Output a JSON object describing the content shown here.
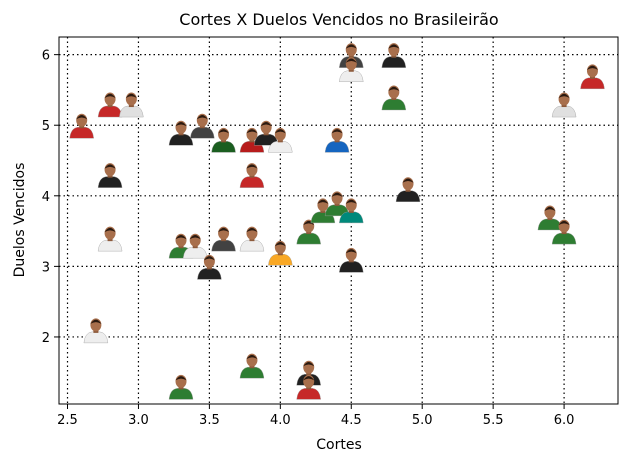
{
  "chart_data": {
    "type": "scatter",
    "title": "Cortes X Duelos Vencidos no Brasileirão",
    "xlabel": "Cortes",
    "ylabel": "Duelos Vencidos",
    "xlim": [
      2.44,
      6.38
    ],
    "ylim": [
      1.05,
      6.25
    ],
    "xticks": [
      "2.5",
      "3.0",
      "3.5",
      "4.0",
      "4.5",
      "5.0",
      "5.5",
      "6.0"
    ],
    "yticks": [
      "2",
      "3",
      "4",
      "5",
      "6"
    ],
    "grid": true,
    "marker": "player-photo",
    "points": [
      {
        "x": 2.6,
        "y": 5.0,
        "shirt": "#c62828"
      },
      {
        "x": 2.8,
        "y": 5.3,
        "shirt": "#c62828"
      },
      {
        "x": 2.95,
        "y": 5.3,
        "shirt": "#e0e0e0"
      },
      {
        "x": 2.8,
        "y": 4.3,
        "shirt": "#212121"
      },
      {
        "x": 2.8,
        "y": 3.4,
        "shirt": "#eeeeee"
      },
      {
        "x": 2.7,
        "y": 2.1,
        "shirt": "#eeeeee"
      },
      {
        "x": 3.3,
        "y": 4.9,
        "shirt": "#212121"
      },
      {
        "x": 3.45,
        "y": 5.0,
        "shirt": "#424242"
      },
      {
        "x": 3.6,
        "y": 4.8,
        "shirt": "#1b5e20"
      },
      {
        "x": 3.8,
        "y": 4.8,
        "shirt": "#b71c1c"
      },
      {
        "x": 3.9,
        "y": 4.9,
        "shirt": "#212121"
      },
      {
        "x": 4.0,
        "y": 4.8,
        "shirt": "#eeeeee"
      },
      {
        "x": 4.4,
        "y": 4.8,
        "shirt": "#1565c0"
      },
      {
        "x": 3.8,
        "y": 4.3,
        "shirt": "#c62828"
      },
      {
        "x": 3.3,
        "y": 3.3,
        "shirt": "#2e7d32"
      },
      {
        "x": 3.4,
        "y": 3.3,
        "shirt": "#eeeeee"
      },
      {
        "x": 3.6,
        "y": 3.4,
        "shirt": "#424242"
      },
      {
        "x": 3.8,
        "y": 3.4,
        "shirt": "#eeeeee"
      },
      {
        "x": 3.5,
        "y": 3.0,
        "shirt": "#212121"
      },
      {
        "x": 4.0,
        "y": 3.2,
        "shirt": "#f9a825"
      },
      {
        "x": 4.2,
        "y": 3.5,
        "shirt": "#2e7d32"
      },
      {
        "x": 4.3,
        "y": 3.8,
        "shirt": "#2e7d32"
      },
      {
        "x": 4.4,
        "y": 3.9,
        "shirt": "#2e7d32"
      },
      {
        "x": 4.5,
        "y": 3.8,
        "shirt": "#00897b"
      },
      {
        "x": 4.5,
        "y": 3.1,
        "shirt": "#212121"
      },
      {
        "x": 4.9,
        "y": 4.1,
        "shirt": "#212121"
      },
      {
        "x": 4.5,
        "y": 6.0,
        "shirt": "#424242"
      },
      {
        "x": 4.5,
        "y": 5.8,
        "shirt": "#eeeeee"
      },
      {
        "x": 4.8,
        "y": 6.0,
        "shirt": "#212121"
      },
      {
        "x": 4.8,
        "y": 5.4,
        "shirt": "#2e7d32"
      },
      {
        "x": 6.2,
        "y": 5.7,
        "shirt": "#c62828"
      },
      {
        "x": 6.0,
        "y": 5.3,
        "shirt": "#e0e0e0"
      },
      {
        "x": 5.9,
        "y": 3.7,
        "shirt": "#2e7d32"
      },
      {
        "x": 6.0,
        "y": 3.5,
        "shirt": "#2e7d32"
      },
      {
        "x": 3.3,
        "y": 1.3,
        "shirt": "#2e7d32"
      },
      {
        "x": 3.8,
        "y": 1.6,
        "shirt": "#2e7d32"
      },
      {
        "x": 4.2,
        "y": 1.5,
        "shirt": "#212121"
      },
      {
        "x": 4.2,
        "y": 1.3,
        "shirt": "#c62828"
      }
    ]
  }
}
